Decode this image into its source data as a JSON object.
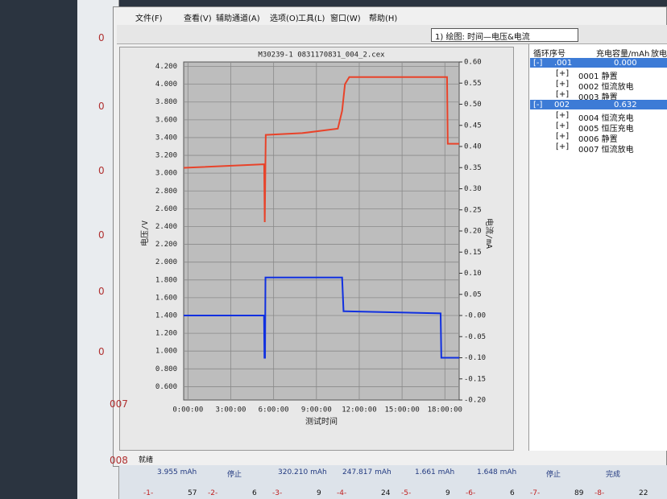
{
  "menu": [
    "文件(F)",
    "查看(V)",
    "辅助通道(A)",
    "选项(O)",
    "工具(L)",
    "窗口(W)",
    "帮助(H)"
  ],
  "plot_select": "1) 绘图: 时间—电压&电流",
  "chart_data": {
    "type": "line",
    "title": "M30239-1 0831170831_004_2.cex",
    "xlabel": "测试时间",
    "ylabel": "电压/V",
    "y2label": "电流/mA",
    "xlim": [
      -0.3,
      19.0
    ],
    "xticks": [
      {
        "value": 0,
        "label": "0:00:00"
      },
      {
        "value": 3,
        "label": "3:00:00"
      },
      {
        "value": 6,
        "label": "6:00:00"
      },
      {
        "value": 9,
        "label": "9:00:00"
      },
      {
        "value": 12,
        "label": "12:00:00"
      },
      {
        "value": 15,
        "label": "15:00:00"
      },
      {
        "value": 18,
        "label": "18:00:00"
      }
    ],
    "ylim": [
      0.45,
      4.25
    ],
    "yticks": [
      {
        "value": 0.6,
        "label": "0.600"
      },
      {
        "value": 0.8,
        "label": "0.800"
      },
      {
        "value": 1.0,
        "label": "1.000"
      },
      {
        "value": 1.2,
        "label": "1.200"
      },
      {
        "value": 1.4,
        "label": "1.400"
      },
      {
        "value": 1.6,
        "label": "1.600"
      },
      {
        "value": 1.8,
        "label": "1.800"
      },
      {
        "value": 2.0,
        "label": "2.000"
      },
      {
        "value": 2.2,
        "label": "2.200"
      },
      {
        "value": 2.4,
        "label": "2.400"
      },
      {
        "value": 2.6,
        "label": "2.600"
      },
      {
        "value": 2.8,
        "label": "2.800"
      },
      {
        "value": 3.0,
        "label": "3.000"
      },
      {
        "value": 3.2,
        "label": "3.200"
      },
      {
        "value": 3.4,
        "label": "3.400"
      },
      {
        "value": 3.6,
        "label": "3.600"
      },
      {
        "value": 3.8,
        "label": "3.800"
      },
      {
        "value": 4.0,
        "label": "4.000"
      },
      {
        "value": 4.2,
        "label": "4.200"
      }
    ],
    "y2lim": [
      -0.2,
      0.6
    ],
    "y2ticks": [
      {
        "value": -0.2,
        "label": "-0.20"
      },
      {
        "value": -0.15,
        "label": "-0.15"
      },
      {
        "value": -0.1,
        "label": "-0.10"
      },
      {
        "value": -0.05,
        "label": "-0.05"
      },
      {
        "value": 0,
        "label": "-0.00"
      },
      {
        "value": 0.05,
        "label": "0.05"
      },
      {
        "value": 0.1,
        "label": "0.10"
      },
      {
        "value": 0.15,
        "label": "0.15"
      },
      {
        "value": 0.2,
        "label": "0.20"
      },
      {
        "value": 0.25,
        "label": "0.25"
      },
      {
        "value": 0.3,
        "label": "0.30"
      },
      {
        "value": 0.35,
        "label": "0.35"
      },
      {
        "value": 0.4,
        "label": "0.40"
      },
      {
        "value": 0.45,
        "label": "0.45"
      },
      {
        "value": 0.5,
        "label": "0.50"
      },
      {
        "value": 0.55,
        "label": "0.55"
      },
      {
        "value": 0.6,
        "label": "0.60"
      }
    ],
    "grid": true,
    "series": [
      {
        "color": "#e8432a",
        "x": [
          -0.3,
          5.3,
          5.34,
          5.38,
          5.45,
          8.0,
          10.5,
          10.8,
          11.0,
          11.3,
          18.15,
          18.2,
          19.0
        ],
        "values": [
          3.06,
          3.1,
          3.1,
          2.45,
          3.43,
          3.45,
          3.5,
          3.7,
          4.0,
          4.08,
          4.08,
          3.33,
          3.33
        ]
      },
      {
        "color": "#1030e0",
        "axis": "y2",
        "x": [
          -0.3,
          5.33,
          5.36,
          5.4,
          5.43,
          5.46,
          10.8,
          10.9,
          11.0,
          17.7,
          17.75,
          17.8,
          19.0
        ],
        "values": [
          0.0,
          0.0,
          -0.1,
          -0.1,
          0.09,
          0.09,
          0.09,
          0.01,
          0.01,
          0.005,
          -0.1,
          -0.1,
          -0.1
        ]
      }
    ]
  },
  "tree": {
    "headers": [
      "循环序号",
      "充电容量/mAh",
      "放电"
    ],
    "rows": [
      {
        "toggle": "[-]",
        "label": ".001",
        "value": "0.000"
      },
      {
        "toggle": "[+]",
        "label": "0001 静置"
      },
      {
        "toggle": "[+]",
        "label": "0002 恒流放电"
      },
      {
        "toggle": "[+]",
        "label": "0003 静置"
      },
      {
        "toggle": "[-]",
        "label": "002",
        "value": "0.632"
      },
      {
        "toggle": "[+]",
        "label": "0004 恒流充电"
      },
      {
        "toggle": "[+]",
        "label": "0005 恒压充电"
      },
      {
        "toggle": "[+]",
        "label": "0006 静置"
      },
      {
        "toggle": "[+]",
        "label": "0007 恒流放电"
      }
    ]
  },
  "status": "就绪",
  "side_labels": [
    "0",
    "0",
    "0",
    "0",
    "0",
    "0",
    "007",
    "008"
  ],
  "summary": [
    "3.955 mAh",
    "停止",
    "320.210 mAh",
    "247.817 mAh",
    "1.661 mAh",
    "1.648 mAh",
    "停止",
    "完成"
  ],
  "channels": [
    {
      "label": "-1-",
      "value": 57
    },
    {
      "label": "-2-",
      "value": 6
    },
    {
      "label": "-3-",
      "value": 9
    },
    {
      "label": "-4-",
      "value": 24
    },
    {
      "label": "-5-",
      "value": 9
    },
    {
      "label": "-6-",
      "value": 6
    },
    {
      "label": "-7-",
      "value": 89
    },
    {
      "label": "-8-",
      "value": 22
    }
  ]
}
